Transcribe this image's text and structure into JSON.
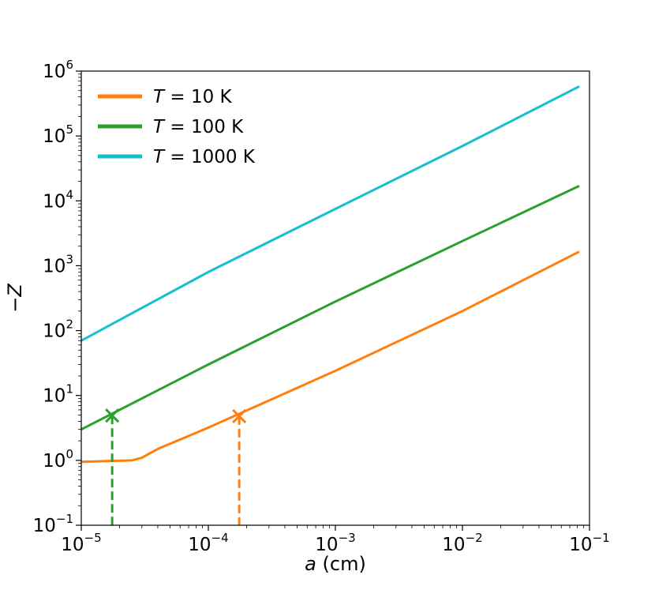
{
  "chart_data": {
    "type": "line",
    "title": "",
    "xlabel": {
      "var": "a",
      "unit": " (cm)"
    },
    "ylabel": "−Z",
    "xscale": "log",
    "yscale": "log",
    "xlim": [
      1e-05,
      0.1
    ],
    "ylim": [
      0.1,
      1000000
    ],
    "grid": false,
    "legend_placement": "top-left",
    "x_ticks": [
      {
        "base": "10",
        "exp": "−5",
        "value": 1e-05
      },
      {
        "base": "10",
        "exp": "−4",
        "value": 0.0001
      },
      {
        "base": "10",
        "exp": "−3",
        "value": 0.001
      },
      {
        "base": "10",
        "exp": "−2",
        "value": 0.01
      },
      {
        "base": "10",
        "exp": "−1",
        "value": 0.1
      }
    ],
    "y_ticks": [
      {
        "base": "10",
        "exp": "−1",
        "value": 0.1
      },
      {
        "base": "10",
        "exp": "0",
        "value": 1
      },
      {
        "base": "10",
        "exp": "1",
        "value": 10
      },
      {
        "base": "10",
        "exp": "2",
        "value": 100
      },
      {
        "base": "10",
        "exp": "3",
        "value": 1000
      },
      {
        "base": "10",
        "exp": "4",
        "value": 10000
      },
      {
        "base": "10",
        "exp": "5",
        "value": 100000
      },
      {
        "base": "10",
        "exp": "6",
        "value": 1000000
      }
    ],
    "series": [
      {
        "name": "T = 10 K",
        "legend_var": "T",
        "legend_rest": " = 10 K",
        "color": "#ff7f0e",
        "x": [
          1e-05,
          2.5e-05,
          3e-05,
          4e-05,
          0.0001,
          0.001,
          0.01,
          0.083
        ],
        "y": [
          0.95,
          1.0,
          1.1,
          1.5,
          3.2,
          24,
          200,
          1650
        ],
        "marker": {
          "x": 0.000175,
          "y": 4.8
        }
      },
      {
        "name": "T = 100 K",
        "legend_var": "T",
        "legend_rest": " = 100 K",
        "color": "#2ca02c",
        "x": [
          1e-05,
          0.0001,
          0.001,
          0.01,
          0.083
        ],
        "y": [
          3.0,
          30,
          280,
          2400,
          17000
        ],
        "marker": {
          "x": 1.75e-05,
          "y": 4.9
        }
      },
      {
        "name": "T = 1000 K",
        "legend_var": "T",
        "legend_rest": " = 1000 K",
        "color": "#17becf",
        "x": [
          1e-05,
          0.0001,
          0.001,
          0.01,
          0.083
        ],
        "y": [
          70,
          800,
          7500,
          70000,
          580000
        ]
      }
    ]
  }
}
